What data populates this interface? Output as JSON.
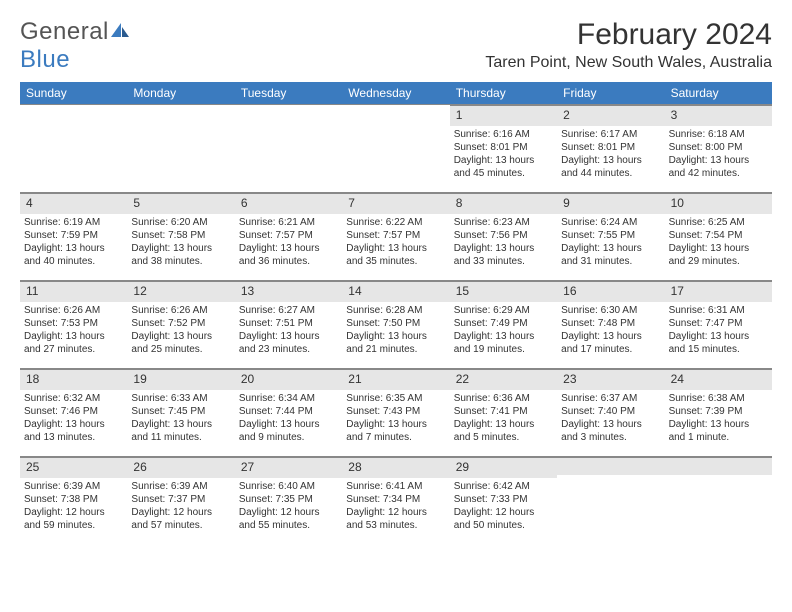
{
  "brand": {
    "part1": "General",
    "part2": "Blue"
  },
  "title": "February 2024",
  "location": "Taren Point, New South Wales, Australia",
  "colors": {
    "header_bg": "#3b7bbf",
    "header_text": "#ffffff",
    "daynum_bg": "#e6e6e6",
    "border": "#888888",
    "text": "#333333",
    "background": "#ffffff"
  },
  "typography": {
    "title_fontsize": 30,
    "location_fontsize": 16,
    "dow_fontsize": 12,
    "daynum_fontsize": 12,
    "body_fontsize": 10
  },
  "daysOfWeek": [
    "Sunday",
    "Monday",
    "Tuesday",
    "Wednesday",
    "Thursday",
    "Friday",
    "Saturday"
  ],
  "startOffset": 4,
  "days": [
    {
      "n": "1",
      "sunrise": "Sunrise: 6:16 AM",
      "sunset": "Sunset: 8:01 PM",
      "day1": "Daylight: 13 hours",
      "day2": "and 45 minutes."
    },
    {
      "n": "2",
      "sunrise": "Sunrise: 6:17 AM",
      "sunset": "Sunset: 8:01 PM",
      "day1": "Daylight: 13 hours",
      "day2": "and 44 minutes."
    },
    {
      "n": "3",
      "sunrise": "Sunrise: 6:18 AM",
      "sunset": "Sunset: 8:00 PM",
      "day1": "Daylight: 13 hours",
      "day2": "and 42 minutes."
    },
    {
      "n": "4",
      "sunrise": "Sunrise: 6:19 AM",
      "sunset": "Sunset: 7:59 PM",
      "day1": "Daylight: 13 hours",
      "day2": "and 40 minutes."
    },
    {
      "n": "5",
      "sunrise": "Sunrise: 6:20 AM",
      "sunset": "Sunset: 7:58 PM",
      "day1": "Daylight: 13 hours",
      "day2": "and 38 minutes."
    },
    {
      "n": "6",
      "sunrise": "Sunrise: 6:21 AM",
      "sunset": "Sunset: 7:57 PM",
      "day1": "Daylight: 13 hours",
      "day2": "and 36 minutes."
    },
    {
      "n": "7",
      "sunrise": "Sunrise: 6:22 AM",
      "sunset": "Sunset: 7:57 PM",
      "day1": "Daylight: 13 hours",
      "day2": "and 35 minutes."
    },
    {
      "n": "8",
      "sunrise": "Sunrise: 6:23 AM",
      "sunset": "Sunset: 7:56 PM",
      "day1": "Daylight: 13 hours",
      "day2": "and 33 minutes."
    },
    {
      "n": "9",
      "sunrise": "Sunrise: 6:24 AM",
      "sunset": "Sunset: 7:55 PM",
      "day1": "Daylight: 13 hours",
      "day2": "and 31 minutes."
    },
    {
      "n": "10",
      "sunrise": "Sunrise: 6:25 AM",
      "sunset": "Sunset: 7:54 PM",
      "day1": "Daylight: 13 hours",
      "day2": "and 29 minutes."
    },
    {
      "n": "11",
      "sunrise": "Sunrise: 6:26 AM",
      "sunset": "Sunset: 7:53 PM",
      "day1": "Daylight: 13 hours",
      "day2": "and 27 minutes."
    },
    {
      "n": "12",
      "sunrise": "Sunrise: 6:26 AM",
      "sunset": "Sunset: 7:52 PM",
      "day1": "Daylight: 13 hours",
      "day2": "and 25 minutes."
    },
    {
      "n": "13",
      "sunrise": "Sunrise: 6:27 AM",
      "sunset": "Sunset: 7:51 PM",
      "day1": "Daylight: 13 hours",
      "day2": "and 23 minutes."
    },
    {
      "n": "14",
      "sunrise": "Sunrise: 6:28 AM",
      "sunset": "Sunset: 7:50 PM",
      "day1": "Daylight: 13 hours",
      "day2": "and 21 minutes."
    },
    {
      "n": "15",
      "sunrise": "Sunrise: 6:29 AM",
      "sunset": "Sunset: 7:49 PM",
      "day1": "Daylight: 13 hours",
      "day2": "and 19 minutes."
    },
    {
      "n": "16",
      "sunrise": "Sunrise: 6:30 AM",
      "sunset": "Sunset: 7:48 PM",
      "day1": "Daylight: 13 hours",
      "day2": "and 17 minutes."
    },
    {
      "n": "17",
      "sunrise": "Sunrise: 6:31 AM",
      "sunset": "Sunset: 7:47 PM",
      "day1": "Daylight: 13 hours",
      "day2": "and 15 minutes."
    },
    {
      "n": "18",
      "sunrise": "Sunrise: 6:32 AM",
      "sunset": "Sunset: 7:46 PM",
      "day1": "Daylight: 13 hours",
      "day2": "and 13 minutes."
    },
    {
      "n": "19",
      "sunrise": "Sunrise: 6:33 AM",
      "sunset": "Sunset: 7:45 PM",
      "day1": "Daylight: 13 hours",
      "day2": "and 11 minutes."
    },
    {
      "n": "20",
      "sunrise": "Sunrise: 6:34 AM",
      "sunset": "Sunset: 7:44 PM",
      "day1": "Daylight: 13 hours",
      "day2": "and 9 minutes."
    },
    {
      "n": "21",
      "sunrise": "Sunrise: 6:35 AM",
      "sunset": "Sunset: 7:43 PM",
      "day1": "Daylight: 13 hours",
      "day2": "and 7 minutes."
    },
    {
      "n": "22",
      "sunrise": "Sunrise: 6:36 AM",
      "sunset": "Sunset: 7:41 PM",
      "day1": "Daylight: 13 hours",
      "day2": "and 5 minutes."
    },
    {
      "n": "23",
      "sunrise": "Sunrise: 6:37 AM",
      "sunset": "Sunset: 7:40 PM",
      "day1": "Daylight: 13 hours",
      "day2": "and 3 minutes."
    },
    {
      "n": "24",
      "sunrise": "Sunrise: 6:38 AM",
      "sunset": "Sunset: 7:39 PM",
      "day1": "Daylight: 13 hours",
      "day2": "and 1 minute."
    },
    {
      "n": "25",
      "sunrise": "Sunrise: 6:39 AM",
      "sunset": "Sunset: 7:38 PM",
      "day1": "Daylight: 12 hours",
      "day2": "and 59 minutes."
    },
    {
      "n": "26",
      "sunrise": "Sunrise: 6:39 AM",
      "sunset": "Sunset: 7:37 PM",
      "day1": "Daylight: 12 hours",
      "day2": "and 57 minutes."
    },
    {
      "n": "27",
      "sunrise": "Sunrise: 6:40 AM",
      "sunset": "Sunset: 7:35 PM",
      "day1": "Daylight: 12 hours",
      "day2": "and 55 minutes."
    },
    {
      "n": "28",
      "sunrise": "Sunrise: 6:41 AM",
      "sunset": "Sunset: 7:34 PM",
      "day1": "Daylight: 12 hours",
      "day2": "and 53 minutes."
    },
    {
      "n": "29",
      "sunrise": "Sunrise: 6:42 AM",
      "sunset": "Sunset: 7:33 PM",
      "day1": "Daylight: 12 hours",
      "day2": "and 50 minutes."
    }
  ]
}
